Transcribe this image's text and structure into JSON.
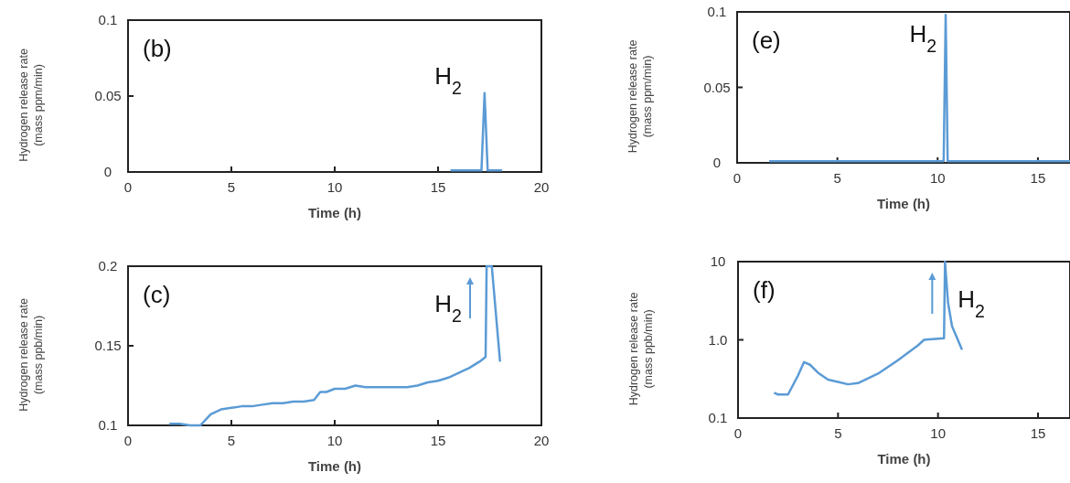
{
  "chart_data": [
    {
      "type": "line",
      "xlabel": "Time (h)",
      "ylabel": "Hydrogen release rate\n(mass ppm/min)",
      "xlim": [
        0,
        20
      ],
      "xticks": [
        0,
        5,
        10,
        15,
        20
      ],
      "ylim": [
        0,
        0.1
      ],
      "yticks": [
        0,
        0.05,
        0.1
      ],
      "annotations": [
        "(b)",
        {
          "text": "H$_{2}$",
          "x": 17.3,
          "y": 0.052
        }
      ],
      "series": [
        {
          "color": "#5b9bd5",
          "x": [
            15.6,
            17.1,
            17.25,
            17.4,
            18.1
          ],
          "values": [
            0.001,
            0.001,
            0.052,
            0.001,
            0.001
          ]
        }
      ]
    },
    {
      "type": "line",
      "xlabel": "Time (h)",
      "ylabel": "Hydrogen release rate\n(mass ppb/min)",
      "xlim": [
        0,
        20
      ],
      "xticks": [
        0,
        5,
        10,
        15,
        20
      ],
      "ylim": [
        0.1,
        0.2
      ],
      "yticks": [
        0.1,
        0.15,
        0.2
      ],
      "annotations": [
        "(c)",
        {
          "text": "H$_{2}$",
          "x": 17.3,
          "y": 0.2
        }
      ],
      "series": [
        {
          "color": "#5b9bd5",
          "x": [
            2,
            2.5,
            3,
            3.5,
            4,
            4.5,
            5,
            5.5,
            6,
            6.5,
            7,
            7.5,
            8,
            8.5,
            9,
            9.3,
            9.6,
            10,
            10.5,
            11,
            11.5,
            12,
            12.5,
            13,
            13.5,
            14,
            14.5,
            15,
            15.5,
            16,
            16.5,
            17,
            17.3,
            17.35,
            17.6,
            18
          ],
          "values": [
            0.101,
            0.101,
            0.1,
            0.1,
            0.107,
            0.11,
            0.111,
            0.112,
            0.112,
            0.113,
            0.114,
            0.114,
            0.115,
            0.115,
            0.116,
            0.121,
            0.121,
            0.123,
            0.123,
            0.125,
            0.124,
            0.124,
            0.124,
            0.124,
            0.124,
            0.125,
            0.127,
            0.128,
            0.13,
            0.133,
            0.136,
            0.14,
            0.143,
            0.2,
            0.2,
            0.14
          ]
        }
      ]
    },
    {
      "type": "line",
      "xlabel": "Time (h)",
      "ylabel": "Hydrogen release rate\n(mass ppm/min)",
      "xlim": [
        0,
        16.6
      ],
      "xticks": [
        0,
        5,
        10,
        15
      ],
      "ylim": [
        0,
        0.1
      ],
      "yticks": [
        0,
        0.05,
        0.1
      ],
      "annotations": [
        "(e)",
        {
          "text": "H$_{2}$",
          "x": 10.4,
          "y": 0.098
        }
      ],
      "series": [
        {
          "color": "#5b9bd5",
          "x": [
            1.6,
            10.3,
            10.4,
            10.5,
            16.6
          ],
          "values": [
            0.001,
            0.001,
            0.098,
            0.001,
            0.001
          ]
        }
      ]
    },
    {
      "type": "line",
      "xlabel": "Time (h)",
      "ylabel": "Hydrogen release rate\n(mass ppb/min)",
      "log": true,
      "xlim": [
        0,
        16.6
      ],
      "xticks": [
        0,
        5,
        10,
        15
      ],
      "ylim": [
        0.1,
        10
      ],
      "yticks": [
        0.1,
        {
          "value": 1,
          "label": "1.0"
        },
        10
      ],
      "annotations": [
        "(f)",
        {
          "text": "H$_{2}$",
          "x": 10.35,
          "y": 10
        }
      ],
      "series": [
        {
          "color": "#5b9bd5",
          "x": [
            1.8,
            2,
            2.5,
            3,
            3.3,
            3.6,
            4,
            4.5,
            5,
            5.5,
            6,
            7,
            8,
            9,
            9.3,
            10.3,
            10.35,
            10.5,
            10.7,
            11.2
          ],
          "values": [
            0.21,
            0.2,
            0.2,
            0.35,
            0.52,
            0.48,
            0.38,
            0.31,
            0.29,
            0.27,
            0.28,
            0.37,
            0.55,
            0.85,
            1,
            1.05,
            10,
            3,
            1.5,
            0.75
          ]
        }
      ]
    }
  ]
}
